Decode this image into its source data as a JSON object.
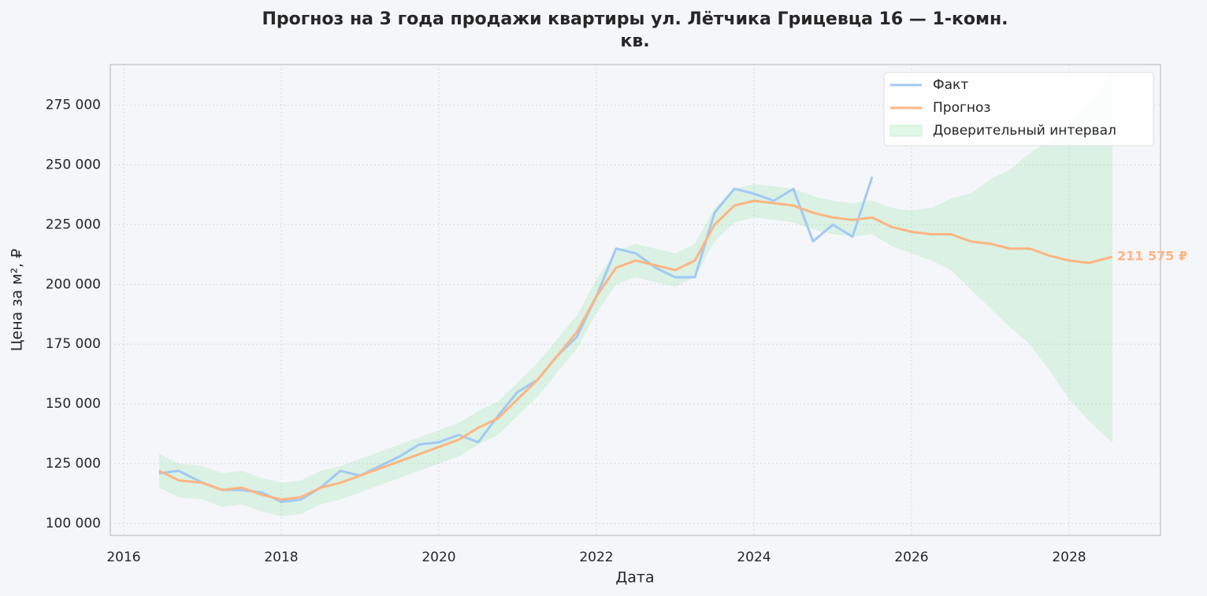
{
  "chart_data": {
    "type": "line",
    "title": [
      "Прогноз на 3 года продажи квартиры  ул. Лётчика Грицевца 16 — 1-комн.",
      "кв."
    ],
    "x_label": "Дата",
    "y_label": "Цена за м², ₽",
    "xlim": [
      2015.83,
      2029.16
    ],
    "xticks": [
      2016,
      2018,
      2020,
      2022,
      2024,
      2026,
      2028
    ],
    "ylim": [
      95000,
      292000
    ],
    "yticks": [
      {
        "value": 100000,
        "label": "100 000"
      },
      {
        "value": 125000,
        "label": "125 000"
      },
      {
        "value": 150000,
        "label": "150 000"
      },
      {
        "value": 175000,
        "label": "175 000"
      },
      {
        "value": 200000,
        "label": "200 000"
      },
      {
        "value": 225000,
        "label": "225 000"
      },
      {
        "value": 250000,
        "label": "250 000"
      },
      {
        "value": 275000,
        "label": "275 000"
      }
    ],
    "grid": true,
    "legend": "upper right",
    "series": [
      {
        "name": "Факт",
        "color": "#a1c9f4",
        "x": [
          2016.45,
          2016.7,
          2017,
          2017.25,
          2017.5,
          2017.75,
          2018,
          2018.25,
          2018.5,
          2018.75,
          2019,
          2019.25,
          2019.5,
          2019.75,
          2020,
          2020.25,
          2020.5,
          2020.75,
          2021,
          2021.25,
          2021.5,
          2021.75,
          2022,
          2022.25,
          2022.5,
          2022.75,
          2023,
          2023.25,
          2023.5,
          2023.75,
          2024,
          2024.25,
          2024.5,
          2024.75,
          2025,
          2025.25,
          2025.5
        ],
        "values": [
          121000,
          122000,
          117000,
          114000,
          114000,
          113000,
          109000,
          110000,
          115000,
          122000,
          120000,
          124000,
          128000,
          133000,
          134000,
          137000,
          134000,
          145000,
          155000,
          160000,
          170000,
          178000,
          195000,
          215000,
          213000,
          207000,
          203000,
          203000,
          230000,
          240000,
          238000,
          235000,
          240000,
          218000,
          225000,
          220000,
          245000
        ]
      },
      {
        "name": "Прогноз",
        "color": "#ffb482",
        "end_label": "211 575 ₽",
        "x": [
          2016.45,
          2016.7,
          2017,
          2017.25,
          2017.5,
          2017.75,
          2018,
          2018.25,
          2018.5,
          2018.75,
          2019,
          2019.25,
          2019.5,
          2019.75,
          2020,
          2020.25,
          2020.5,
          2020.75,
          2021,
          2021.25,
          2021.5,
          2021.75,
          2022,
          2022.25,
          2022.5,
          2022.75,
          2023,
          2023.25,
          2023.5,
          2023.75,
          2024,
          2024.25,
          2024.5,
          2024.75,
          2025,
          2025.25,
          2025.5,
          2025.75,
          2026,
          2026.25,
          2026.5,
          2026.75,
          2027,
          2027.25,
          2027.5,
          2027.75,
          2028,
          2028.25,
          2028.55
        ],
        "values": [
          122000,
          118000,
          117000,
          114000,
          115000,
          112000,
          110000,
          111000,
          115000,
          117000,
          120000,
          123000,
          126000,
          129000,
          132000,
          135000,
          140000,
          144000,
          152000,
          160000,
          170000,
          180000,
          195000,
          207000,
          210000,
          208000,
          206000,
          210000,
          225000,
          233000,
          235000,
          234000,
          233000,
          230000,
          228000,
          227000,
          228000,
          224000,
          222000,
          221000,
          221000,
          218000,
          217000,
          215000,
          215000,
          212000,
          210000,
          209000,
          211575
        ]
      }
    ],
    "band": {
      "name": "Доверительный интервал",
      "color": "#8de5a1",
      "x": [
        2016.45,
        2016.7,
        2017,
        2017.25,
        2017.5,
        2017.75,
        2018,
        2018.25,
        2018.5,
        2018.75,
        2019,
        2019.25,
        2019.5,
        2019.75,
        2020,
        2020.25,
        2020.5,
        2020.75,
        2021,
        2021.25,
        2021.5,
        2021.75,
        2022,
        2022.25,
        2022.5,
        2022.75,
        2023,
        2023.25,
        2023.5,
        2023.75,
        2024,
        2024.25,
        2024.5,
        2024.75,
        2025,
        2025.25,
        2025.5,
        2025.75,
        2026,
        2026.25,
        2026.5,
        2026.75,
        2027,
        2027.25,
        2027.5,
        2027.75,
        2028,
        2028.25,
        2028.55
      ],
      "lower": [
        115000,
        111000,
        110000,
        107000,
        108000,
        105000,
        103000,
        104000,
        108000,
        110000,
        113000,
        116000,
        119000,
        122000,
        125000,
        128000,
        133000,
        137000,
        145000,
        153000,
        163000,
        173000,
        188000,
        200000,
        203000,
        201000,
        199000,
        203000,
        218000,
        226000,
        228000,
        227000,
        226000,
        223000,
        221000,
        220000,
        221000,
        216000,
        213000,
        210000,
        206000,
        198000,
        190000,
        182000,
        175000,
        164000,
        152000,
        143000,
        133575
      ],
      "upper": [
        129000,
        125000,
        124000,
        121000,
        122000,
        119000,
        117000,
        118000,
        122000,
        124000,
        127000,
        130000,
        133000,
        136000,
        139000,
        142000,
        147000,
        151000,
        159000,
        167000,
        177000,
        187000,
        202000,
        214000,
        217000,
        215000,
        213000,
        217000,
        232000,
        240000,
        242000,
        241000,
        240000,
        237000,
        235000,
        234000,
        235000,
        232000,
        231000,
        232000,
        236000,
        238000,
        244000,
        248000,
        255000,
        260000,
        268000,
        275000,
        289575
      ]
    }
  }
}
